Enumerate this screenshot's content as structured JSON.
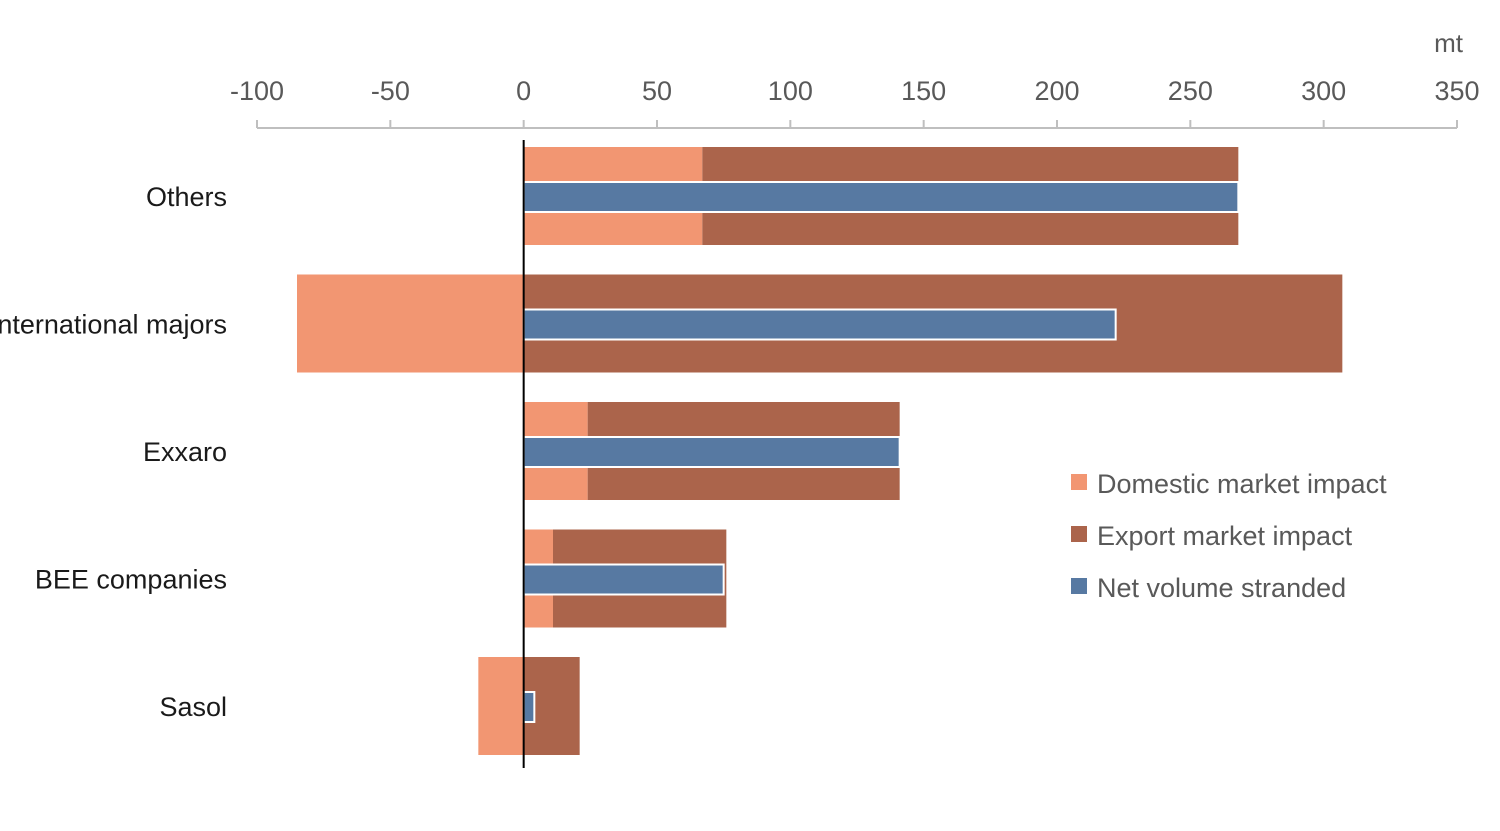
{
  "chart_data": {
    "type": "bar",
    "orientation": "horizontal",
    "unit": "mt",
    "xlim": [
      -100,
      350
    ],
    "x_ticks": [
      -100,
      -50,
      0,
      50,
      100,
      150,
      200,
      250,
      300,
      350
    ],
    "categories": [
      "Others",
      "International majors",
      "Exxaro",
      "BEE companies",
      "Sasol"
    ],
    "series": [
      {
        "name": "Domestic market impact",
        "values": [
          67,
          -85,
          24,
          11,
          -17
        ]
      },
      {
        "name": "Export market impact",
        "values": [
          201,
          307,
          117,
          65,
          21
        ]
      },
      {
        "name": "Net volume stranded",
        "values": [
          268,
          222,
          141,
          75,
          4
        ]
      }
    ],
    "legend_position": "right",
    "colors": {
      "domestic": "#f29672",
      "export": "#ab644b",
      "net": "#5779a2",
      "axis": "#bfbfbf",
      "zero_line": "#000000"
    }
  }
}
